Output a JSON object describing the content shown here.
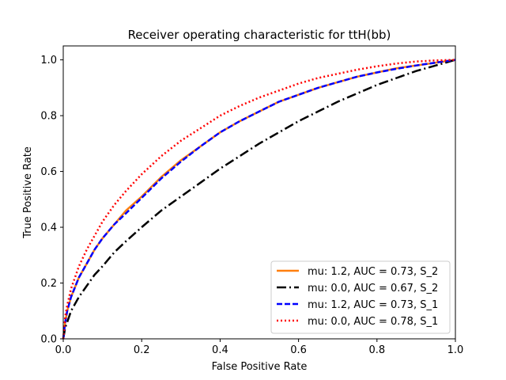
{
  "chart_data": {
    "type": "line",
    "title": "Receiver operating characteristic for ttH(bb)",
    "xlabel": "False Positive Rate",
    "ylabel": "True Positive Rate",
    "xlim": [
      0.0,
      1.0
    ],
    "ylim": [
      0.0,
      1.05
    ],
    "xticks": [
      0.0,
      0.2,
      0.4,
      0.6,
      0.8,
      1.0
    ],
    "yticks": [
      0.0,
      0.2,
      0.4,
      0.6,
      0.8,
      1.0
    ],
    "xtick_labels": [
      "0.0",
      "0.2",
      "0.4",
      "0.6",
      "0.8",
      "1.0"
    ],
    "ytick_labels": [
      "0.0",
      "0.2",
      "0.4",
      "0.6",
      "0.8",
      "1.0"
    ],
    "grid": false,
    "legend_position": "lower-right",
    "series": [
      {
        "name": "mu: 1.2, AUC = 0.73, S_2",
        "color": "#ff7f0e",
        "style": "solid",
        "x": [
          0.0,
          0.005,
          0.01,
          0.02,
          0.04,
          0.06,
          0.08,
          0.1,
          0.13,
          0.16,
          0.2,
          0.25,
          0.3,
          0.35,
          0.4,
          0.45,
          0.5,
          0.55,
          0.6,
          0.65,
          0.7,
          0.75,
          0.8,
          0.85,
          0.9,
          0.95,
          1.0
        ],
        "y": [
          0.0,
          0.06,
          0.1,
          0.15,
          0.22,
          0.27,
          0.32,
          0.36,
          0.41,
          0.46,
          0.51,
          0.58,
          0.64,
          0.69,
          0.74,
          0.78,
          0.815,
          0.85,
          0.875,
          0.9,
          0.92,
          0.94,
          0.955,
          0.97,
          0.98,
          0.99,
          1.0
        ]
      },
      {
        "name": "mu: 0.0, AUC = 0.67, S_2",
        "color": "#000000",
        "style": "dashdot",
        "x": [
          0.0,
          0.005,
          0.01,
          0.02,
          0.04,
          0.06,
          0.08,
          0.1,
          0.13,
          0.16,
          0.2,
          0.25,
          0.3,
          0.35,
          0.4,
          0.45,
          0.5,
          0.55,
          0.6,
          0.65,
          0.7,
          0.75,
          0.8,
          0.85,
          0.9,
          0.95,
          1.0
        ],
        "y": [
          0.0,
          0.04,
          0.06,
          0.1,
          0.15,
          0.19,
          0.23,
          0.26,
          0.31,
          0.35,
          0.4,
          0.46,
          0.51,
          0.56,
          0.61,
          0.655,
          0.7,
          0.74,
          0.78,
          0.815,
          0.85,
          0.88,
          0.91,
          0.935,
          0.96,
          0.98,
          1.0
        ]
      },
      {
        "name": "mu: 1.2, AUC = 0.73, S_1",
        "color": "#0000ff",
        "style": "dashed",
        "x": [
          0.0,
          0.005,
          0.01,
          0.02,
          0.04,
          0.06,
          0.08,
          0.1,
          0.13,
          0.16,
          0.2,
          0.25,
          0.3,
          0.35,
          0.4,
          0.45,
          0.5,
          0.55,
          0.6,
          0.65,
          0.7,
          0.75,
          0.8,
          0.85,
          0.9,
          0.95,
          1.0
        ],
        "y": [
          0.0,
          0.06,
          0.1,
          0.15,
          0.22,
          0.27,
          0.32,
          0.36,
          0.41,
          0.45,
          0.505,
          0.575,
          0.635,
          0.69,
          0.74,
          0.78,
          0.815,
          0.85,
          0.875,
          0.9,
          0.92,
          0.94,
          0.955,
          0.968,
          0.98,
          0.99,
          1.0
        ]
      },
      {
        "name": "mu: 0.0, AUC = 0.78, S_1",
        "color": "#ff0000",
        "style": "dotted",
        "x": [
          0.0,
          0.005,
          0.01,
          0.02,
          0.04,
          0.06,
          0.08,
          0.1,
          0.13,
          0.16,
          0.2,
          0.25,
          0.3,
          0.35,
          0.4,
          0.45,
          0.5,
          0.55,
          0.6,
          0.65,
          0.7,
          0.75,
          0.8,
          0.85,
          0.9,
          0.95,
          1.0
        ],
        "y": [
          0.0,
          0.08,
          0.12,
          0.18,
          0.26,
          0.32,
          0.37,
          0.42,
          0.48,
          0.53,
          0.59,
          0.655,
          0.71,
          0.755,
          0.8,
          0.835,
          0.865,
          0.89,
          0.915,
          0.935,
          0.95,
          0.965,
          0.977,
          0.987,
          0.994,
          0.998,
          1.0
        ]
      }
    ]
  }
}
